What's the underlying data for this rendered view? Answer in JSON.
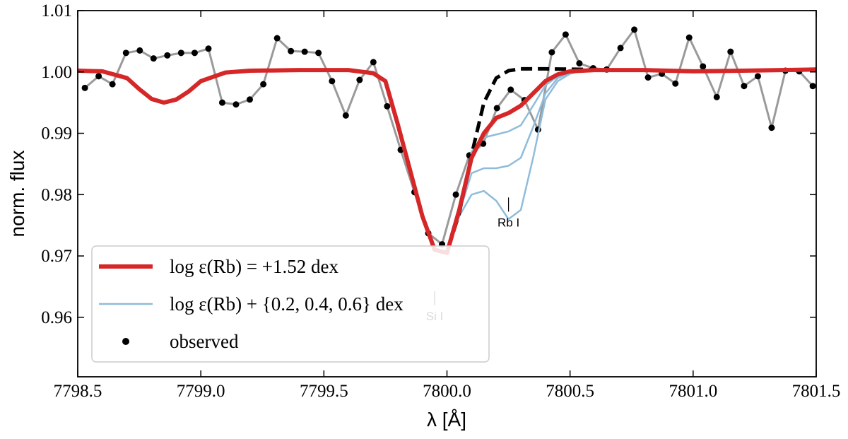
{
  "chart_data": {
    "type": "line",
    "xlabel": "λ [Å]",
    "ylabel": "norm. flux",
    "xlim": [
      7798.5,
      7801.5
    ],
    "ylim": [
      0.9503,
      1.01
    ],
    "xticks": [
      7798.5,
      {
        "value": 7799,
        "label": "7799.0"
      },
      7799.5,
      {
        "value": 7800,
        "label": "7800.0"
      },
      7800.5,
      {
        "value": 7801,
        "label": "7801.0"
      },
      7801.5
    ],
    "yticks": [
      0.96,
      0.97,
      0.98,
      0.99,
      {
        "value": 1,
        "label": "1.00"
      },
      1.01
    ],
    "legend": "lower left",
    "annotations": [
      {
        "text": "Rb I",
        "x": 7800.25,
        "y": 0.9755
      },
      {
        "text": "Si I",
        "x": 7799.95,
        "y": 0.9602
      }
    ],
    "series": [
      {
        "name": "observed",
        "type": "scatter",
        "color": "#000000",
        "line_color": "#9a9a9a",
        "x": [
          7798.529,
          7798.585,
          7798.641,
          7798.696,
          7798.752,
          7798.808,
          7798.864,
          7798.92,
          7798.975,
          7799.031,
          7799.087,
          7799.143,
          7799.199,
          7799.254,
          7799.31,
          7799.366,
          7799.422,
          7799.478,
          7799.533,
          7799.589,
          7799.645,
          7799.701,
          7799.757,
          7799.812,
          7799.868,
          7799.924,
          7799.98,
          7800.036,
          7800.091,
          7800.147,
          7800.203,
          7800.259,
          7800.315,
          7800.37,
          7800.426,
          7800.482,
          7800.538,
          7800.594,
          7800.649,
          7800.705,
          7800.761,
          7800.817,
          7800.873,
          7800.928,
          7800.984,
          7801.04,
          7801.096,
          7801.152,
          7801.207,
          7801.263,
          7801.319,
          7801.375,
          7801.431,
          7801.486
        ],
        "values": [
          0.9974,
          0.9993,
          0.998,
          1.0031,
          1.0035,
          1.0022,
          1.0027,
          1.0031,
          1.0031,
          1.0038,
          0.995,
          0.9947,
          0.9955,
          0.998,
          1.0055,
          1.0034,
          1.0033,
          1.0031,
          0.9985,
          0.9929,
          0.9987,
          1.0016,
          0.9944,
          0.9873,
          0.9804,
          0.9737,
          0.9719,
          0.98,
          0.9864,
          0.9883,
          0.9941,
          0.9971,
          0.9954,
          0.9906,
          1.0032,
          1.0061,
          1.0014,
          1.0006,
          1.0004,
          1.0039,
          1.0069,
          0.9991,
          0.9997,
          0.9981,
          1.0056,
          1.0009,
          0.9959,
          1.0033,
          0.9977,
          0.9993,
          0.9909,
          1.0002,
          1.0001,
          0.9977
        ]
      },
      {
        "name": "log ε(Rb) = +1.52 dex",
        "color": "#d62728",
        "width": 6,
        "x": [
          7798.5,
          7798.6,
          7798.7,
          7798.75,
          7798.8,
          7798.85,
          7798.9,
          7798.95,
          7799.0,
          7799.1,
          7799.2,
          7799.4,
          7799.6,
          7799.7,
          7799.75,
          7799.8,
          7799.85,
          7799.9,
          7799.95,
          7800.0,
          7800.05,
          7800.1,
          7800.15,
          7800.2,
          7800.25,
          7800.3,
          7800.35,
          7800.4,
          7800.45,
          7800.5,
          7800.6,
          7800.8,
          7801.0,
          7801.2,
          7801.5
        ],
        "values": [
          1.0002,
          1.0001,
          0.999,
          0.9972,
          0.9956,
          0.995,
          0.9955,
          0.9968,
          0.9985,
          0.9999,
          1.0002,
          1.0003,
          1.0003,
          0.9998,
          0.9985,
          0.9915,
          0.984,
          0.9765,
          0.971,
          0.9705,
          0.9775,
          0.986,
          0.99,
          0.9925,
          0.9933,
          0.9945,
          0.9965,
          0.9985,
          0.9996,
          1.0001,
          1.0003,
          1.0003,
          1.0001,
          1.0002,
          1.0004
        ]
      },
      {
        "name": "log ε(Rb) + {0.2, 0.4, 0.6} dex",
        "color": "#8fbcdb",
        "width": 2.5,
        "x": [
          7800.0,
          7800.05,
          7800.1,
          7800.15,
          7800.2,
          7800.25,
          7800.3,
          7800.35,
          7800.4,
          7800.45,
          7800.5,
          7800.55
        ],
        "values": [
          0.9705,
          0.9775,
          0.987,
          0.9893,
          0.9898,
          0.9903,
          0.9913,
          0.9945,
          0.9978,
          0.9993,
          0.9999,
          1.0002
        ]
      },
      {
        "color": "#8fbcdb",
        "width": 2.5,
        "x": [
          7800.0,
          7800.05,
          7800.1,
          7800.15,
          7800.2,
          7800.25,
          7800.3,
          7800.35,
          7800.4,
          7800.45,
          7800.5,
          7800.55
        ],
        "values": [
          0.9705,
          0.977,
          0.9835,
          0.9843,
          0.9843,
          0.9847,
          0.986,
          0.991,
          0.9965,
          0.999,
          0.9998,
          1.0002
        ]
      },
      {
        "color": "#8fbcdb",
        "width": 2.5,
        "x": [
          7800.0,
          7800.05,
          7800.1,
          7800.15,
          7800.2,
          7800.25,
          7800.3,
          7800.35,
          7800.4,
          7800.45,
          7800.5,
          7800.55
        ],
        "values": [
          0.9705,
          0.9765,
          0.98,
          0.9806,
          0.979,
          0.976,
          0.9775,
          0.986,
          0.9955,
          0.9985,
          0.9997,
          1.0002
        ]
      },
      {
        "color": "#000000",
        "width": 5,
        "dashed": true,
        "x": [
          7799.85,
          7799.9,
          7799.95,
          7800.0,
          7800.05,
          7800.1,
          7800.15,
          7800.2,
          7800.25,
          7800.3,
          7800.4,
          7800.6
        ],
        "values": [
          0.984,
          0.9765,
          0.971,
          0.9705,
          0.977,
          0.9865,
          0.995,
          0.999,
          1.0002,
          1.0005,
          1.0005,
          1.0004
        ]
      }
    ]
  }
}
